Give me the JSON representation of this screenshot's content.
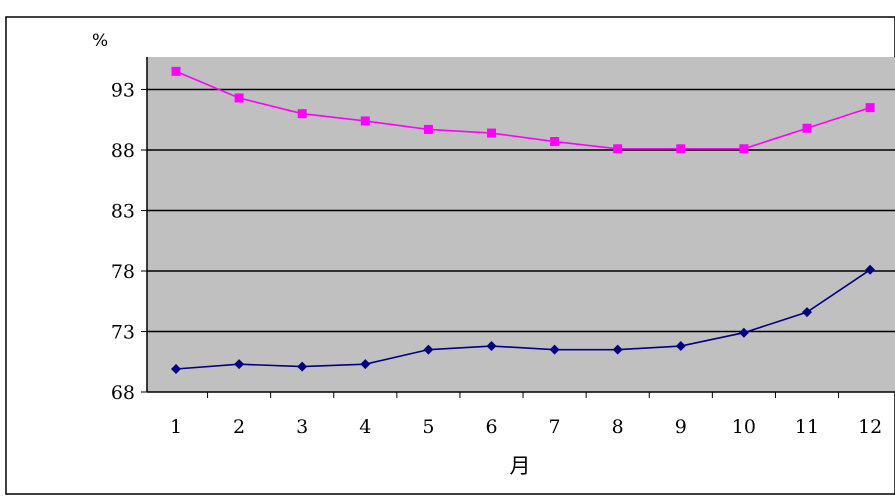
{
  "chart_data": {
    "type": "line",
    "title": "",
    "xlabel": "月",
    "ylabel": "%",
    "categories": [
      "1",
      "2",
      "3",
      "4",
      "5",
      "6",
      "7",
      "8",
      "9",
      "10",
      "11",
      "12"
    ],
    "yticks": [
      "68",
      "73",
      "78",
      "83",
      "88",
      "93"
    ],
    "ylim": [
      68,
      96
    ],
    "grid": true,
    "series": [
      {
        "color": "#ff00ff",
        "marker": "square",
        "values": [
          94.5,
          92.3,
          91.0,
          90.4,
          89.7,
          89.4,
          88.7,
          88.1,
          88.1,
          88.1,
          89.8,
          91.5
        ]
      },
      {
        "color": "#000080",
        "marker": "diamond",
        "values": [
          69.9,
          70.3,
          70.1,
          70.3,
          71.5,
          71.8,
          71.5,
          71.5,
          71.8,
          72.9,
          74.6,
          78.1
        ]
      }
    ],
    "colors": {
      "plot_background": "#c0c0c0",
      "gridline": "#000000",
      "frame": "#000000"
    }
  }
}
